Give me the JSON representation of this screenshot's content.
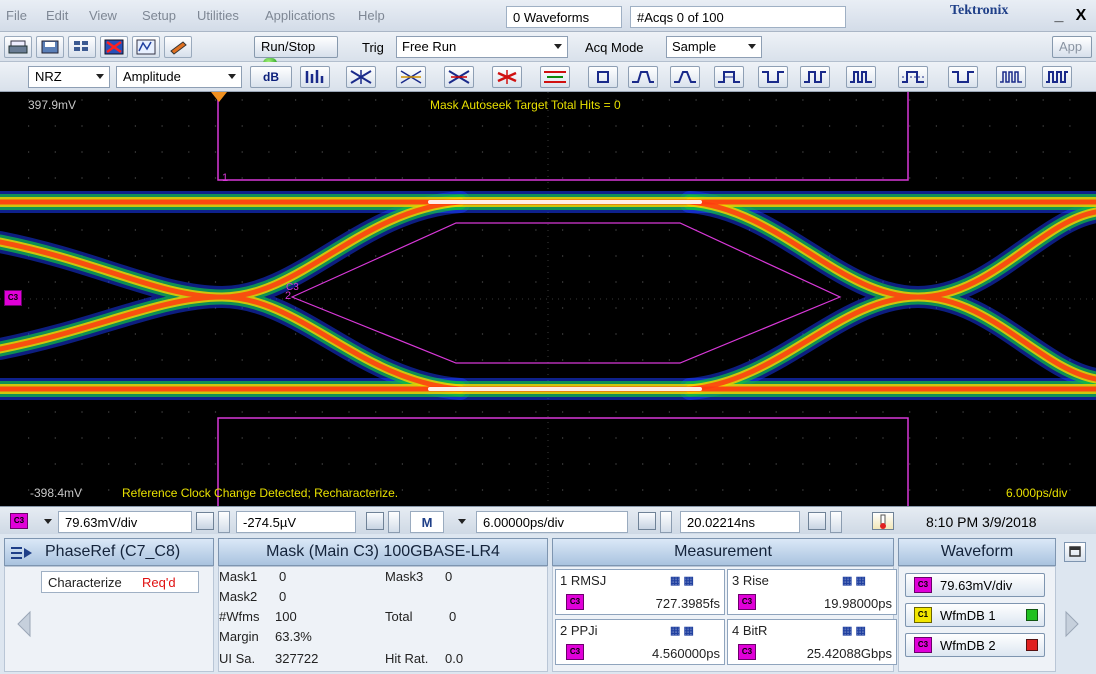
{
  "menubar": {
    "items": [
      "File",
      "Edit",
      "View",
      "Setup",
      "Utilities",
      "Applications",
      "Help"
    ],
    "waveforms": "0 Waveforms",
    "acqs": "#Acqs  0 of 100",
    "brand": "Tektronix",
    "minimize": "_",
    "close": "X"
  },
  "toolbar": {
    "run_stop": "Run/Stop",
    "trig_label": "Trig",
    "trig_mode": "Free Run",
    "acq_label": "Acq Mode",
    "acq_mode": "Sample",
    "app": "App"
  },
  "toolbar2": {
    "coding": "NRZ",
    "measure_type": "Amplitude",
    "db_button": "dB"
  },
  "scope": {
    "top_voltage": "397.9mV",
    "bottom_voltage": "-398.4mV",
    "mask_message": "Mask Autoseek Target Total Hits = 0",
    "clock_message": "Reference Clock Change Detected; Recharacterize.",
    "time_scale": "6.000ps/div",
    "mask_label_1": "1",
    "mask_label_2": "2",
    "channel_label": "C3"
  },
  "hstrip": {
    "vertical_scale": "79.63mV/div",
    "offset": "-274.5µV",
    "math_label": "M",
    "horizontal_scale": "6.00000ps/div",
    "position": "20.02214ns",
    "datetime": "8:10 PM 3/9/2018"
  },
  "panels": {
    "phaseref": {
      "title": "PhaseRef (C7_C8)",
      "characterize": "Characterize",
      "status": "Req'd"
    },
    "mask": {
      "title": "Mask (Main  C3) 100GBASE-LR4",
      "mask1_label": "Mask1",
      "mask1_value": "0",
      "mask2_label": "Mask2",
      "mask2_value": "0",
      "mask3_label": "Mask3",
      "mask3_value": "0",
      "wfms_label": "#Wfms",
      "wfms_value": "100",
      "total_label": "Total",
      "total_value": "0",
      "margin_label": "Margin",
      "margin_value": "63.3%",
      "uisa_label": "UI Sa.",
      "uisa_value": "327722",
      "hitrat_label": "Hit Rat.",
      "hitrat_value": "0.0"
    },
    "measurement": {
      "title": "Measurement",
      "items": [
        {
          "label": "1 RMSJ",
          "value": "727.3985fs"
        },
        {
          "label": "3 Rise",
          "value": "19.98000ps"
        },
        {
          "label": "2 PPJi",
          "value": "4.560000ps"
        },
        {
          "label": "4 BitR",
          "value": "25.42088Gbps"
        }
      ]
    },
    "waveform": {
      "title": "Waveform",
      "scale": "79.63mV/div",
      "db1": "WfmDB 1",
      "db2": "WfmDB 2"
    }
  },
  "colors": {
    "mask": "#d838d8",
    "channel": "#e000d8",
    "text_yellow": "#e8e000",
    "status_red": "#e01010",
    "brand": "#1f3f88"
  }
}
